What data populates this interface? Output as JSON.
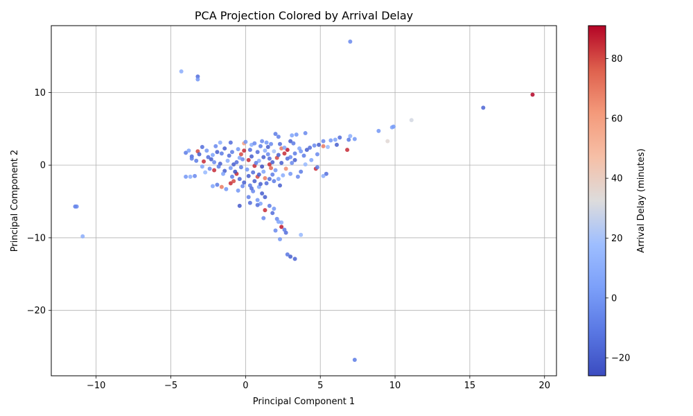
{
  "chart_data": {
    "type": "scatter",
    "title": "PCA Projection Colored by Arrival Delay",
    "xlabel": "Principal Component 1",
    "ylabel": "Principal Component 2",
    "colorbar_label": "Arrival Delay (minutes)",
    "xlim": [
      -13,
      20.8
    ],
    "ylim": [
      -29,
      19.2
    ],
    "color_range": [
      -26,
      91
    ],
    "colormap": "coolwarm",
    "grid": true,
    "xticks": [
      -10,
      -5,
      0,
      5,
      10,
      15,
      20
    ],
    "yticks": [
      -20,
      -10,
      0,
      10
    ],
    "colorbar_ticks": [
      -20,
      0,
      20,
      40,
      60,
      80
    ],
    "points": [
      {
        "x": 7.0,
        "y": 17.0,
        "c": -5
      },
      {
        "x": -4.3,
        "y": 12.9,
        "c": 10
      },
      {
        "x": -3.2,
        "y": 12.2,
        "c": -15
      },
      {
        "x": -3.2,
        "y": 11.8,
        "c": 0
      },
      {
        "x": 19.2,
        "y": 9.7,
        "c": 91
      },
      {
        "x": 15.9,
        "y": 7.9,
        "c": -18
      },
      {
        "x": 11.1,
        "y": 6.2,
        "c": 30
      },
      {
        "x": 9.8,
        "y": 5.2,
        "c": 5
      },
      {
        "x": 9.9,
        "y": 5.3,
        "c": 2
      },
      {
        "x": 8.9,
        "y": 4.7,
        "c": 0
      },
      {
        "x": 9.5,
        "y": 3.3,
        "c": 35
      },
      {
        "x": 7.0,
        "y": 4.0,
        "c": 10
      },
      {
        "x": 7.3,
        "y": 3.6,
        "c": 0
      },
      {
        "x": 6.9,
        "y": 3.5,
        "c": -10
      },
      {
        "x": 6.8,
        "y": 2.1,
        "c": 85
      },
      {
        "x": 6.3,
        "y": 3.8,
        "c": -15
      },
      {
        "x": 6.1,
        "y": 2.8,
        "c": -20
      },
      {
        "x": 6.0,
        "y": 3.5,
        "c": 5
      },
      {
        "x": 5.7,
        "y": 3.4,
        "c": 0
      },
      {
        "x": 5.5,
        "y": 2.5,
        "c": 15
      },
      {
        "x": 5.2,
        "y": 3.3,
        "c": -5
      },
      {
        "x": 5.2,
        "y": 2.6,
        "c": 70
      },
      {
        "x": 4.9,
        "y": 2.8,
        "c": -20
      },
      {
        "x": 4.7,
        "y": -0.5,
        "c": 85
      },
      {
        "x": 4.8,
        "y": -0.3,
        "c": -10
      },
      {
        "x": 5.4,
        "y": -1.2,
        "c": -15
      },
      {
        "x": 5.2,
        "y": -1.5,
        "c": 10
      },
      {
        "x": 4.8,
        "y": 1.5,
        "c": -5
      },
      {
        "x": -11.4,
        "y": -5.7,
        "c": -10
      },
      {
        "x": -11.3,
        "y": -5.7,
        "c": -5
      },
      {
        "x": -10.9,
        "y": -9.8,
        "c": 10
      },
      {
        "x": 7.3,
        "y": -26.8,
        "c": -10
      },
      {
        "x": 3.3,
        "y": -12.9,
        "c": -18
      },
      {
        "x": 3.0,
        "y": -12.6,
        "c": -20
      },
      {
        "x": 2.8,
        "y": -12.3,
        "c": -12
      },
      {
        "x": 3.7,
        "y": -9.6,
        "c": 15
      },
      {
        "x": 2.7,
        "y": -9.3,
        "c": -15
      },
      {
        "x": 2.6,
        "y": -8.9,
        "c": -10
      },
      {
        "x": 2.3,
        "y": -10.2,
        "c": 0
      },
      {
        "x": 2.4,
        "y": -8.5,
        "c": 88
      },
      {
        "x": 2.0,
        "y": -9.0,
        "c": -5
      },
      {
        "x": 2.4,
        "y": -7.9,
        "c": 10
      },
      {
        "x": 2.1,
        "y": -7.4,
        "c": -5
      },
      {
        "x": 2.2,
        "y": -7.8,
        "c": 5
      },
      {
        "x": 1.9,
        "y": -6.0,
        "c": 0
      },
      {
        "x": 1.8,
        "y": -6.6,
        "c": -15
      },
      {
        "x": 1.3,
        "y": -6.2,
        "c": 85
      },
      {
        "x": 1.2,
        "y": -7.3,
        "c": -5
      },
      {
        "x": 1.6,
        "y": -5.6,
        "c": -10
      },
      {
        "x": 1.0,
        "y": -5.3,
        "c": 5
      },
      {
        "x": 0.8,
        "y": -5.5,
        "c": -15
      },
      {
        "x": -0.4,
        "y": -5.6,
        "c": -22
      },
      {
        "x": 0.3,
        "y": -5.2,
        "c": -15
      },
      {
        "x": 0.2,
        "y": -4.4,
        "c": -8
      },
      {
        "x": 1.3,
        "y": -4.4,
        "c": -20
      },
      {
        "x": 0.8,
        "y": -4.8,
        "c": 0
      },
      {
        "x": 1.1,
        "y": -3.9,
        "c": -20
      },
      {
        "x": 0.5,
        "y": -3.6,
        "c": -5
      },
      {
        "x": -0.5,
        "y": -3.5,
        "c": 0
      },
      {
        "x": -1.0,
        "y": -2.5,
        "c": 85
      },
      {
        "x": -0.8,
        "y": -2.2,
        "c": 80
      },
      {
        "x": -1.6,
        "y": -3.0,
        "c": 70
      },
      {
        "x": -1.3,
        "y": -3.3,
        "c": 0
      },
      {
        "x": -2.2,
        "y": -2.9,
        "c": 5
      },
      {
        "x": -1.9,
        "y": -2.7,
        "c": -10
      },
      {
        "x": -4.0,
        "y": -1.6,
        "c": 0
      },
      {
        "x": -3.7,
        "y": -1.6,
        "c": 10
      },
      {
        "x": -3.4,
        "y": -1.5,
        "c": -5
      },
      {
        "x": -2.7,
        "y": -1.0,
        "c": 15
      },
      {
        "x": -2.1,
        "y": -0.7,
        "c": 85
      },
      {
        "x": -0.6,
        "y": -1.2,
        "c": 85
      },
      {
        "x": -3.2,
        "y": 1.9,
        "c": 80
      },
      {
        "x": -2.9,
        "y": 2.5,
        "c": -15
      },
      {
        "x": -2.8,
        "y": 0.5,
        "c": 85
      },
      {
        "x": -3.6,
        "y": 1.2,
        "c": -15
      },
      {
        "x": -4.0,
        "y": 1.7,
        "c": -10
      },
      {
        "x": -3.8,
        "y": 2.0,
        "c": 5
      },
      {
        "x": -3.6,
        "y": 0.9,
        "c": -8
      },
      {
        "x": -3.1,
        "y": 1.5,
        "c": -20
      },
      {
        "x": -1.7,
        "y": 3.1,
        "c": 10
      },
      {
        "x": -1.0,
        "y": 3.1,
        "c": -15
      },
      {
        "x": -0.1,
        "y": 3.0,
        "c": 60
      },
      {
        "x": 0.0,
        "y": 3.2,
        "c": 0
      },
      {
        "x": -0.1,
        "y": 2.0,
        "c": 85
      },
      {
        "x": -0.3,
        "y": 1.5,
        "c": 80
      },
      {
        "x": 0.4,
        "y": 2.8,
        "c": 10
      },
      {
        "x": 0.6,
        "y": 3.0,
        "c": -5
      },
      {
        "x": 1.1,
        "y": 3.3,
        "c": -5
      },
      {
        "x": 1.4,
        "y": 3.1,
        "c": 0
      },
      {
        "x": 1.5,
        "y": 2.5,
        "c": -20
      },
      {
        "x": 2.0,
        "y": 4.3,
        "c": -10
      },
      {
        "x": 2.2,
        "y": 3.9,
        "c": -8
      },
      {
        "x": 3.1,
        "y": 4.1,
        "c": 5
      },
      {
        "x": 3.4,
        "y": 4.2,
        "c": 0
      },
      {
        "x": 4.0,
        "y": 4.4,
        "c": -5
      },
      {
        "x": 3.0,
        "y": 3.3,
        "c": -20
      },
      {
        "x": 3.2,
        "y": 3.0,
        "c": -10
      },
      {
        "x": 2.8,
        "y": 2.1,
        "c": 88
      },
      {
        "x": 2.4,
        "y": 2.3,
        "c": 70
      },
      {
        "x": 2.6,
        "y": 1.6,
        "c": 85
      },
      {
        "x": 2.1,
        "y": 1.0,
        "c": 80
      },
      {
        "x": 1.6,
        "y": 0.1,
        "c": 85
      },
      {
        "x": 1.7,
        "y": -0.4,
        "c": 75
      },
      {
        "x": 1.3,
        "y": -1.8,
        "c": 70
      },
      {
        "x": 1.6,
        "y": -1.9,
        "c": -15
      },
      {
        "x": 0.8,
        "y": -1.6,
        "c": 80
      },
      {
        "x": 0.6,
        "y": -0.1,
        "c": 85
      },
      {
        "x": 0.2,
        "y": 0.7,
        "c": 85
      },
      {
        "x": 2.7,
        "y": -0.5,
        "c": 65
      },
      {
        "x": 2.3,
        "y": -2.8,
        "c": -20
      },
      {
        "x": 2.2,
        "y": -1.9,
        "c": 5
      },
      {
        "x": 3.0,
        "y": -1.2,
        "c": 0
      },
      {
        "x": 3.5,
        "y": -1.6,
        "c": -5
      },
      {
        "x": 3.7,
        "y": -0.9,
        "c": -10
      },
      {
        "x": 4.0,
        "y": 0.1,
        "c": 15
      },
      {
        "x": 3.9,
        "y": 1.3,
        "c": -10
      },
      {
        "x": 3.6,
        "y": 2.3,
        "c": 5
      },
      {
        "x": 4.3,
        "y": 2.4,
        "c": -15
      },
      {
        "x": 4.6,
        "y": 2.7,
        "c": -5
      },
      {
        "x": 4.4,
        "y": 0.7,
        "c": 5
      },
      {
        "x": 3.3,
        "y": 0.7,
        "c": -20
      },
      {
        "x": 3.0,
        "y": 1.1,
        "c": -5
      },
      {
        "x": 1.9,
        "y": 1.9,
        "c": 20
      },
      {
        "x": 1.2,
        "y": 1.1,
        "c": -20
      },
      {
        "x": 0.9,
        "y": 0.6,
        "c": 10
      },
      {
        "x": 1.0,
        "y": 2.6,
        "c": -10
      },
      {
        "x": 0.3,
        "y": 2.1,
        "c": -15
      },
      {
        "x": -0.5,
        "y": 2.2,
        "c": 0
      },
      {
        "x": -0.9,
        "y": 1.8,
        "c": -10
      },
      {
        "x": -1.4,
        "y": 2.3,
        "c": -20
      },
      {
        "x": -1.9,
        "y": 1.8,
        "c": -20
      },
      {
        "x": -2.2,
        "y": 1.4,
        "c": 5
      },
      {
        "x": -2.5,
        "y": 1.1,
        "c": -15
      },
      {
        "x": -2.1,
        "y": 0.4,
        "c": -5
      },
      {
        "x": -1.7,
        "y": 0.2,
        "c": -20
      },
      {
        "x": -1.2,
        "y": 0.6,
        "c": 10
      },
      {
        "x": -0.8,
        "y": 0.1,
        "c": -20
      },
      {
        "x": -0.3,
        "y": -0.3,
        "c": -10
      },
      {
        "x": 0.1,
        "y": -0.6,
        "c": 0
      },
      {
        "x": 0.5,
        "y": -1.0,
        "c": -15
      },
      {
        "x": 0.9,
        "y": -1.3,
        "c": -20
      },
      {
        "x": 1.2,
        "y": -0.9,
        "c": 5
      },
      {
        "x": -0.4,
        "y": -1.9,
        "c": -18
      },
      {
        "x": -0.1,
        "y": -2.4,
        "c": -20
      },
      {
        "x": 0.3,
        "y": -2.8,
        "c": -10
      },
      {
        "x": 0.6,
        "y": -2.2,
        "c": -20
      },
      {
        "x": 0.9,
        "y": -3.0,
        "c": 5
      },
      {
        "x": 1.4,
        "y": -2.5,
        "c": -15
      },
      {
        "x": 1.8,
        "y": -1.3,
        "c": -10
      },
      {
        "x": 2.0,
        "y": -0.7,
        "c": 0
      },
      {
        "x": 2.4,
        "y": 0.3,
        "c": -20
      },
      {
        "x": 2.8,
        "y": 0.9,
        "c": -15
      },
      {
        "x": 3.3,
        "y": 1.6,
        "c": -10
      },
      {
        "x": 3.7,
        "y": 1.9,
        "c": 0
      },
      {
        "x": 4.1,
        "y": 2.1,
        "c": -20
      },
      {
        "x": 1.5,
        "y": 1.5,
        "c": -5
      },
      {
        "x": 1.8,
        "y": 0.4,
        "c": -20
      },
      {
        "x": 0.4,
        "y": 1.2,
        "c": -20
      },
      {
        "x": -0.2,
        "y": 0.8,
        "c": -5
      },
      {
        "x": -0.6,
        "y": 0.4,
        "c": -15
      },
      {
        "x": -1.0,
        "y": -0.4,
        "c": 0
      },
      {
        "x": -1.4,
        "y": -0.8,
        "c": -20
      },
      {
        "x": -1.8,
        "y": -0.2,
        "c": -10
      },
      {
        "x": -2.4,
        "y": -0.5,
        "c": -5
      },
      {
        "x": -2.9,
        "y": -0.2,
        "c": 5
      },
      {
        "x": -3.3,
        "y": 0.6,
        "c": -10
      },
      {
        "x": -2.6,
        "y": 2.0,
        "c": 0
      },
      {
        "x": -2.0,
        "y": 2.6,
        "c": -5
      },
      {
        "x": -1.1,
        "y": 1.3,
        "c": -15
      },
      {
        "x": -0.7,
        "y": -0.9,
        "c": -25
      },
      {
        "x": 0.2,
        "y": -1.5,
        "c": -20
      },
      {
        "x": 0.7,
        "y": 0.3,
        "c": -10
      },
      {
        "x": 1.1,
        "y": -0.2,
        "c": -25
      },
      {
        "x": 1.6,
        "y": 0.9,
        "c": -15
      },
      {
        "x": 2.2,
        "y": 1.4,
        "c": -20
      },
      {
        "x": 2.6,
        "y": 2.4,
        "c": 5
      },
      {
        "x": 3.1,
        "y": 0.3,
        "c": -5
      },
      {
        "x": 2.5,
        "y": -1.4,
        "c": 10
      },
      {
        "x": 1.9,
        "y": -2.2,
        "c": -10
      },
      {
        "x": 1.0,
        "y": -2.6,
        "c": -20
      },
      {
        "x": 0.4,
        "y": -3.2,
        "c": -15
      },
      {
        "x": -0.2,
        "y": -2.9,
        "c": -5
      },
      {
        "x": -0.9,
        "y": -1.6,
        "c": -10
      },
      {
        "x": -1.5,
        "y": -1.2,
        "c": 5
      },
      {
        "x": -2.3,
        "y": 0.8,
        "c": -20
      },
      {
        "x": -1.6,
        "y": 1.6,
        "c": -10
      },
      {
        "x": -0.4,
        "y": 1.0,
        "c": 5
      },
      {
        "x": 0.8,
        "y": 1.8,
        "c": -15
      },
      {
        "x": 1.3,
        "y": 2.0,
        "c": 10
      },
      {
        "x": 1.7,
        "y": 2.9,
        "c": -5
      },
      {
        "x": 2.3,
        "y": 2.9,
        "c": -15
      }
    ]
  }
}
